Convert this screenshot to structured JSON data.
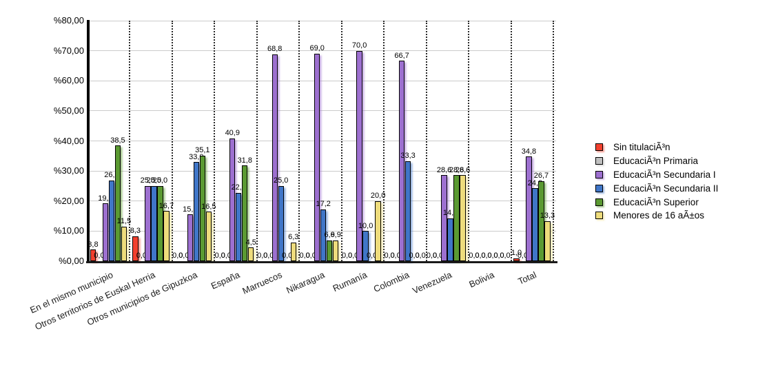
{
  "chart_data": {
    "type": "bar",
    "title": "",
    "categories": [
      "En el mismo municipio",
      "Otros territorios de Euskal Herria",
      "Otros municipios de Gipuzkoa",
      "España",
      "Marruecos",
      "Nikaragua",
      "Rumanía",
      "Colombia",
      "Venezuela",
      "Bolivia",
      "Total"
    ],
    "series": [
      {
        "name": "Sin titulaciÃ³n",
        "color": "#f2402e",
        "values": [
          3.8,
          8.3,
          0.0,
          0.0,
          0.0,
          0.0,
          0.0,
          0.0,
          0.0,
          0.0,
          1.0
        ]
      },
      {
        "name": "EducaciÃ³n Primaria",
        "color": "#c0c0c0",
        "values": [
          0.0,
          0.0,
          0.0,
          0.0,
          0.0,
          0.0,
          0.0,
          0.0,
          0.0,
          0.0,
          0.0
        ]
      },
      {
        "name": "EducaciÃ³n Secundaria I",
        "color": "#9d70d0",
        "values": [
          19.2,
          25.0,
          15.5,
          40.9,
          68.8,
          69.0,
          70.0,
          66.7,
          28.6,
          0.0,
          34.8
        ]
      },
      {
        "name": "EducaciÃ³n Secundaria II",
        "color": "#4076c8",
        "values": [
          26.9,
          25.0,
          33.0,
          22.7,
          25.0,
          17.2,
          10.0,
          33.3,
          14.3,
          0.0,
          24.2
        ]
      },
      {
        "name": "EducaciÃ³n Superior",
        "color": "#5b9a32",
        "values": [
          38.5,
          25.0,
          35.1,
          31.8,
          0.0,
          6.9,
          0.0,
          0.0,
          28.6,
          0.0,
          26.7
        ]
      },
      {
        "name": "Menores de 16 aÃ±os",
        "color": "#eedc7c",
        "values": [
          11.5,
          16.7,
          16.5,
          4.5,
          6.3,
          6.9,
          20.0,
          0.0,
          28.6,
          0.0,
          13.3
        ]
      }
    ],
    "yticks": [
      "%0,00",
      "%10,00",
      "%20,00",
      "%30,00",
      "%40,00",
      "%50,00",
      "%60,00",
      "%70,00",
      "%80,00"
    ],
    "ylim": [
      0,
      80
    ],
    "ytick_step": 10,
    "decimal_separator": ",",
    "value_labels": true,
    "grid": {
      "horizontal": "solid-gray",
      "vertical": "dotted-black-between-groups"
    },
    "legend_position": "right"
  }
}
